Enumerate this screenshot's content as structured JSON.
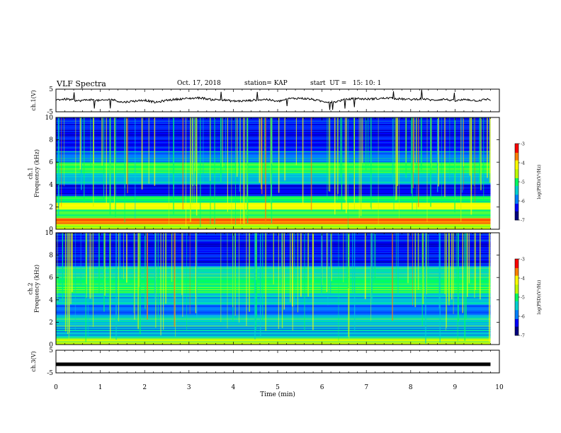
{
  "header": {
    "title": "VLF Spectra",
    "date": "Oct. 17, 2018",
    "station": "station= KAP",
    "start": "start  UT =   15: 10: 1"
  },
  "colors": {
    "colormap": [
      "#000080",
      "#0000ff",
      "#0080ff",
      "#00d0d0",
      "#00ff60",
      "#c0ff00",
      "#ffff00",
      "#ff8000",
      "#ff0000"
    ],
    "trace": "#000000",
    "background": "#ffffff"
  },
  "chart_data": [
    {
      "type": "line",
      "name": "ch1-waveform",
      "ylabel": "ch.1(V)",
      "ylim": [
        -5,
        5
      ],
      "yticks": [
        "5",
        "-5"
      ],
      "xlim": [
        0,
        10
      ],
      "description_of_trace": "noisy waveform fluctuating roughly between -1.5 and 1.5 V with occasional spikes",
      "x": [
        0,
        0.25,
        0.5,
        0.75,
        1,
        1.25,
        1.5,
        1.75,
        2,
        2.25,
        2.5,
        2.75,
        3,
        3.25,
        3.5,
        3.75,
        4,
        4.25,
        4.5,
        4.75,
        5,
        5.25,
        5.5,
        5.75,
        6,
        6.25,
        6.5,
        6.75,
        7,
        7.25,
        7.5,
        7.75,
        8,
        8.25,
        8.5,
        8.75,
        9,
        9.25,
        9.5,
        9.75,
        9.8
      ],
      "y": [
        0.3,
        0.6,
        -0.2,
        0.4,
        -0.1,
        0.5,
        -0.8,
        -0.3,
        0.2,
        -0.9,
        0.1,
        0.6,
        0.9,
        1.2,
        0.4,
        0.3,
        -0.3,
        -0.2,
        0.2,
        0.5,
        -0.5,
        0.8,
        1.0,
        0.6,
        -0.4,
        -0.8,
        0.3,
        0.9,
        0.6,
        0.8,
        1.1,
        0.7,
        0.4,
        0.8,
        0.1,
        0.6,
        -0.2,
        0.5,
        -0.1,
        0.6,
        0.2
      ]
    },
    {
      "type": "heatmap",
      "name": "ch1-spectrogram",
      "ylabel": "ch.1\nFrequency (kHz)",
      "ylim": [
        0,
        10
      ],
      "yticks": [
        "0",
        "2",
        "4",
        "6",
        "8",
        "10"
      ],
      "xlim": [
        0,
        9.8
      ],
      "colorbar": {
        "label": "log(PSD)(V²/Hz)",
        "range": [
          -7,
          -3
        ],
        "ticks": [
          "-3",
          "-4",
          "-5",
          "-6",
          "-7"
        ]
      },
      "level_by_band": [
        {
          "from": 0,
          "to": 0.5,
          "level": -4.6
        },
        {
          "from": 0.5,
          "to": 1.0,
          "level": -3.6
        },
        {
          "from": 1.0,
          "to": 1.8,
          "level": -4.8
        },
        {
          "from": 1.8,
          "to": 2.4,
          "level": -4.3
        },
        {
          "from": 2.4,
          "to": 3.0,
          "level": -5.2
        },
        {
          "from": 3.0,
          "to": 4.0,
          "level": -6.2
        },
        {
          "from": 4.0,
          "to": 5.0,
          "level": -5.6
        },
        {
          "from": 5.0,
          "to": 6.0,
          "level": -4.9
        },
        {
          "from": 6.0,
          "to": 7.0,
          "level": -5.7
        },
        {
          "from": 7.0,
          "to": 10.0,
          "level": -6.3
        }
      ]
    },
    {
      "type": "heatmap",
      "name": "ch2-spectrogram",
      "ylabel": "ch.2\nFrequency (kHz)",
      "ylim": [
        0,
        10
      ],
      "yticks": [
        "0",
        "2",
        "4",
        "6",
        "8",
        "10"
      ],
      "xlim": [
        0,
        9.8
      ],
      "colorbar": {
        "label": "log(PSD)(V²/Hz)",
        "range": [
          -7,
          -3
        ],
        "ticks": [
          "-3",
          "-4",
          "-5",
          "-6",
          "-7"
        ]
      },
      "level_by_band": [
        {
          "from": 0,
          "to": 0.6,
          "level": -4.7
        },
        {
          "from": 0.6,
          "to": 1.6,
          "level": -5.6
        },
        {
          "from": 1.6,
          "to": 2.6,
          "level": -5.3
        },
        {
          "from": 2.6,
          "to": 3.6,
          "level": -5.9
        },
        {
          "from": 3.6,
          "to": 4.6,
          "level": -5.4
        },
        {
          "from": 4.6,
          "to": 6.0,
          "level": -4.8
        },
        {
          "from": 6.0,
          "to": 7.0,
          "level": -5.4
        },
        {
          "from": 7.0,
          "to": 10.0,
          "level": -6.2
        }
      ]
    },
    {
      "type": "line",
      "name": "ch3-waveform",
      "ylabel": "ch.3(V)",
      "ylim": [
        -5,
        5
      ],
      "yticks": [
        "5",
        "-5"
      ],
      "xlabel": "Time (min)",
      "xlim": [
        0,
        10
      ],
      "xticks": [
        "0",
        "1",
        "2",
        "3",
        "4",
        "5",
        "6",
        "7",
        "8",
        "9",
        "10"
      ],
      "x": [
        0,
        9.8
      ],
      "y": [
        -1.2,
        -1.2
      ]
    }
  ]
}
